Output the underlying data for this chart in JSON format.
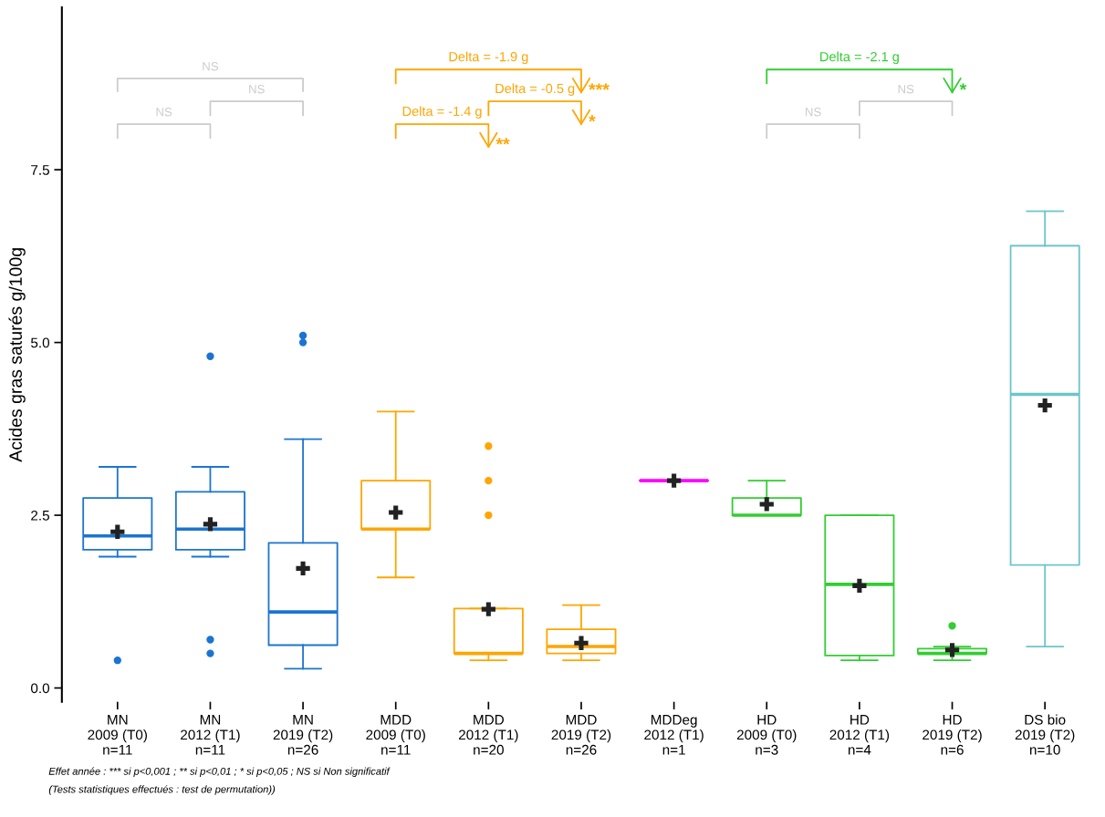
{
  "chart_data": {
    "type": "box",
    "ylabel": "Acides gras saturés g/100g",
    "categories": [
      "MN\n2009 (T0)\nn=11",
      "MN\n2012 (T1)\nn=11",
      "MN\n2019 (T2)\nn=26",
      "MDD\n2009 (T0)\nn=11",
      "MDD\n2012 (T1)\nn=20",
      "MDD\n2019 (T2)\nn=26",
      "MDDeg\n2012 (T1)\nn=1",
      "HD\n2009 (T0)\nn=3",
      "HD\n2012 (T1)\nn=4",
      "HD\n2019 (T2)\nn=6",
      "DS bio\n2019 (T2)\nn=10"
    ],
    "colors": [
      "#1c74d0",
      "#1c74d0",
      "#1c74d0",
      "#ffa500",
      "#ffa500",
      "#ffa500",
      "#ff00ff",
      "#32cd32",
      "#32cd32",
      "#32cd32",
      "#6cc5c9"
    ],
    "boxes": [
      {
        "low": 1.9,
        "q1": 2.0,
        "median": 2.2,
        "q3": 2.75,
        "high": 3.2,
        "mean": 2.26,
        "outliers": [
          0.4
        ]
      },
      {
        "low": 1.9,
        "q1": 2.0,
        "median": 2.3,
        "q3": 2.84,
        "high": 3.2,
        "mean": 2.37,
        "outliers": [
          4.8,
          0.7,
          0.5
        ]
      },
      {
        "low": 0.28,
        "q1": 0.62,
        "median": 1.1,
        "q3": 2.1,
        "high": 3.6,
        "mean": 1.73,
        "outliers": [
          5.1,
          5.0
        ]
      },
      {
        "low": 1.6,
        "q1": 2.3,
        "median": 2.3,
        "q3": 3.0,
        "high": 4.0,
        "mean": 2.54
      },
      {
        "low": 0.4,
        "q1": 0.5,
        "median": 0.5,
        "q3": 1.15,
        "high": 1.15,
        "mean": 1.14,
        "outliers": [
          3.5,
          3.0,
          2.5
        ]
      },
      {
        "low": 0.4,
        "q1": 0.5,
        "median": 0.6,
        "q3": 0.85,
        "high": 1.2,
        "mean": 0.65
      },
      {
        "low": 3.0,
        "q1": 3.0,
        "median": 3.0,
        "q3": 3.0,
        "high": 3.0,
        "mean": 3.0
      },
      {
        "low": 2.5,
        "q1": 2.5,
        "median": 2.5,
        "q3": 2.75,
        "high": 3.0,
        "mean": 2.66
      },
      {
        "low": 0.4,
        "q1": 0.47,
        "median": 1.5,
        "q3": 2.5,
        "high": 2.5,
        "mean": 1.48
      },
      {
        "low": 0.4,
        "q1": 0.5,
        "median": 0.5,
        "q3": 0.57,
        "high": 0.6,
        "mean": 0.55,
        "outliers": [
          0.9
        ]
      },
      {
        "low": 0.6,
        "q1": 1.78,
        "median": 4.25,
        "q3": 6.4,
        "high": 6.9,
        "mean": 4.09
      }
    ],
    "ylim": [
      -0.2,
      9.85
    ],
    "yticks": [
      {
        "value": 0,
        "label": "0.0"
      },
      {
        "value": 2.5,
        "label": "2.5"
      },
      {
        "value": 5,
        "label": "5.0"
      },
      7.5
    ],
    "grid": false,
    "legend": false,
    "annotations": [
      "NS",
      "NS",
      "NS",
      "Delta = -1.9 g",
      "***",
      "Delta = -0.5 g",
      "*",
      "Delta = -1.4 g",
      "**",
      "Delta = -2.1 g",
      "*",
      "NS",
      "NS",
      "Effet année : *** si p<0,001 ; ** si p<0,01 ; * si p<0,05 ; NS si Non significatif",
      "(Tests statistiques effectués : test de permutation))"
    ]
  }
}
